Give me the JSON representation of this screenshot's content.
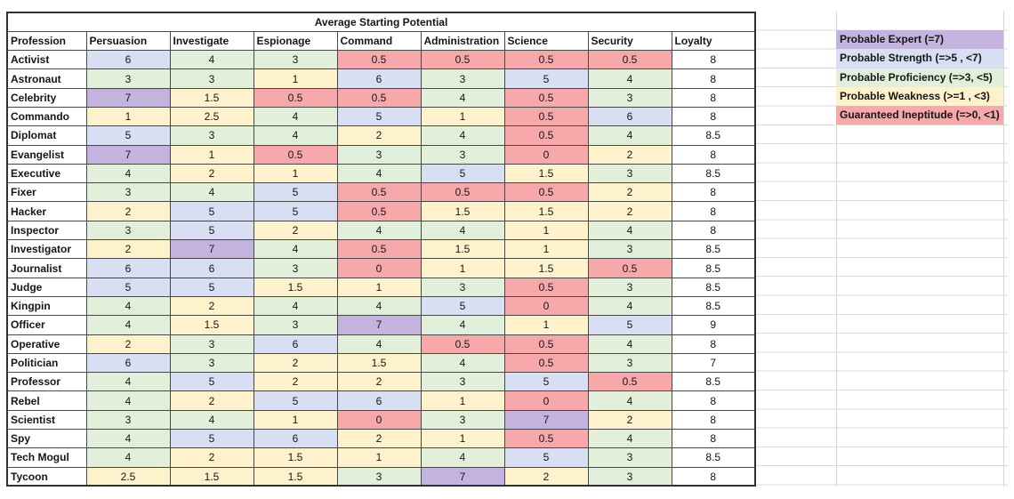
{
  "table": {
    "title": "Average Starting Potential",
    "columns": [
      "Profession",
      "Persuasion",
      "Investigate",
      "Espionage",
      "Command",
      "Administration",
      "Science",
      "Security",
      "Loyalty"
    ],
    "rows": [
      {
        "profession": "Activist",
        "values": [
          6,
          4,
          3,
          0.5,
          0.5,
          0.5,
          0.5
        ],
        "loyalty": "8"
      },
      {
        "profession": "Astronaut",
        "values": [
          3,
          3,
          1,
          6,
          3,
          5,
          4
        ],
        "loyalty": "8"
      },
      {
        "profession": "Celebrity",
        "values": [
          7,
          1.5,
          0.5,
          0.5,
          4,
          0.5,
          3
        ],
        "loyalty": "8"
      },
      {
        "profession": "Commando",
        "values": [
          1,
          2.5,
          4,
          5,
          1,
          0.5,
          6
        ],
        "loyalty": "8"
      },
      {
        "profession": "Diplomat",
        "values": [
          5,
          3,
          4,
          2,
          4,
          0.5,
          4
        ],
        "loyalty": "8.5"
      },
      {
        "profession": "Evangelist",
        "values": [
          7,
          1,
          0.5,
          3,
          3,
          0,
          2
        ],
        "loyalty": "8"
      },
      {
        "profession": "Executive",
        "values": [
          4,
          2,
          1,
          4,
          5,
          1.5,
          3
        ],
        "loyalty": "8.5"
      },
      {
        "profession": "Fixer",
        "values": [
          3,
          4,
          5,
          0.5,
          0.5,
          0.5,
          2
        ],
        "loyalty": "8"
      },
      {
        "profession": "Hacker",
        "values": [
          2,
          5,
          5,
          0.5,
          1.5,
          1.5,
          2
        ],
        "loyalty": "8"
      },
      {
        "profession": "Inspector",
        "values": [
          3,
          5,
          2,
          4,
          4,
          1,
          4
        ],
        "loyalty": "8"
      },
      {
        "profession": "Investigator",
        "values": [
          2,
          7,
          4,
          0.5,
          1.5,
          1,
          3
        ],
        "loyalty": "8.5"
      },
      {
        "profession": "Journalist",
        "values": [
          6,
          6,
          3,
          0,
          1,
          1.5,
          0.5
        ],
        "loyalty": "8.5"
      },
      {
        "profession": "Judge",
        "values": [
          5,
          5,
          1.5,
          1,
          3,
          0.5,
          3
        ],
        "loyalty": "8.5"
      },
      {
        "profession": "Kingpin",
        "values": [
          4,
          2,
          4,
          4,
          5,
          0,
          4
        ],
        "loyalty": "8.5"
      },
      {
        "profession": "Officer",
        "values": [
          4,
          1.5,
          3,
          7,
          4,
          1,
          5
        ],
        "loyalty": "9"
      },
      {
        "profession": "Operative",
        "values": [
          2,
          3,
          6,
          4,
          0.5,
          0.5,
          4
        ],
        "loyalty": "8"
      },
      {
        "profession": "Politician",
        "values": [
          6,
          3,
          2,
          1.5,
          4,
          0.5,
          3
        ],
        "loyalty": "7"
      },
      {
        "profession": "Professor",
        "values": [
          4,
          5,
          2,
          2,
          3,
          5,
          0.5
        ],
        "loyalty": "8.5"
      },
      {
        "profession": "Rebel",
        "values": [
          4,
          2,
          5,
          6,
          1,
          0,
          4
        ],
        "loyalty": "8"
      },
      {
        "profession": "Scientist",
        "values": [
          3,
          4,
          1,
          0,
          3,
          7,
          2
        ],
        "loyalty": "8"
      },
      {
        "profession": "Spy",
        "values": [
          4,
          5,
          6,
          2,
          1,
          0.5,
          4
        ],
        "loyalty": "8"
      },
      {
        "profession": "Tech Mogul",
        "values": [
          4,
          2,
          1.5,
          1,
          4,
          5,
          3
        ],
        "loyalty": "8.5"
      },
      {
        "profession": "Tycoon",
        "values": [
          2.5,
          1.5,
          1.5,
          3,
          7,
          2,
          3
        ],
        "loyalty": "8"
      }
    ]
  },
  "legend": [
    {
      "label": "Probable Expert (=7)",
      "color": "#c4b3de",
      "min": 7
    },
    {
      "label": "Probable Strength (=>5 , <7)",
      "color": "#d8dff2",
      "min": 5
    },
    {
      "label": "Probable Proficiency (=>3, <5)",
      "color": "#e2efda",
      "min": 3
    },
    {
      "label": "Probable Weakness (>=1 , <3)",
      "color": "#fdf2cc",
      "min": 1
    },
    {
      "label": "Guaranteed Ineptitude (=>0, <1)",
      "color": "#f6a8ab",
      "min": 0
    }
  ]
}
